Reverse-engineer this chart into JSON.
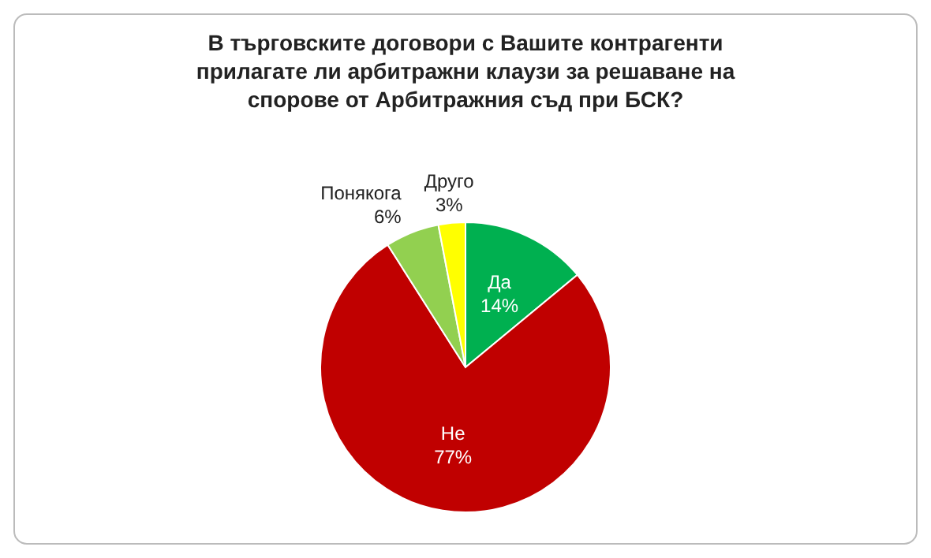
{
  "chart_data": {
    "type": "pie",
    "title": "В търговските договори с Вашите контрагенти прилагате ли арбитражни клаузи за решаване на спорове от Арбитражния съд при БСК?",
    "categories": [
      "Да",
      "Не",
      "Понякога",
      "Друго"
    ],
    "values": [
      14,
      77,
      6,
      3
    ],
    "value_labels": [
      "14%",
      "77%",
      "6%",
      "3%"
    ],
    "colors": [
      "#00b050",
      "#c00000",
      "#92d050",
      "#ffff00"
    ]
  }
}
